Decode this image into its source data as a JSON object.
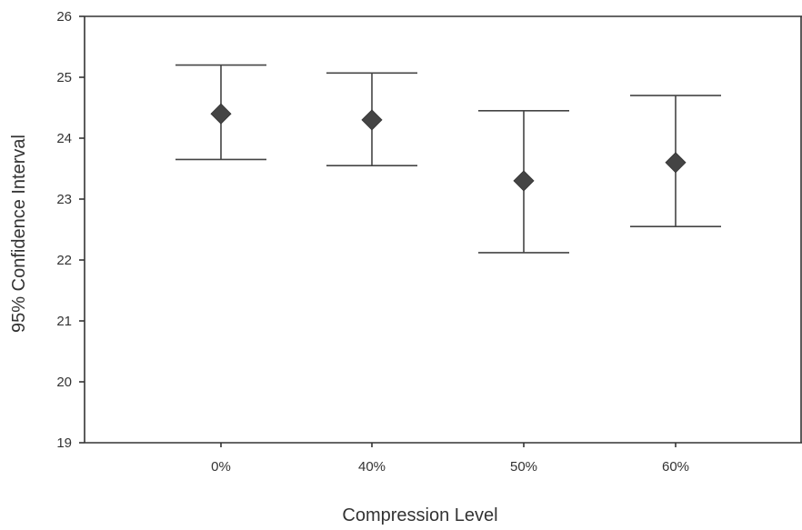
{
  "chart_data": {
    "type": "scatter",
    "xlabel": "Compression Level",
    "ylabel": "95% Confidence Interval",
    "ylim": [
      19,
      26
    ],
    "y_ticks": [
      "19",
      "20",
      "21",
      "22",
      "23",
      "24",
      "25",
      "26"
    ],
    "categories": [
      "0%",
      "40%",
      "50%",
      "60%"
    ],
    "values": [
      24.4,
      24.3,
      23.3,
      23.6
    ],
    "lower": [
      23.65,
      23.55,
      22.12,
      22.55
    ],
    "upper": [
      25.2,
      25.07,
      24.45,
      24.7
    ],
    "grid": false,
    "colors": {
      "marker": "#444444",
      "axis": "#333333"
    }
  }
}
